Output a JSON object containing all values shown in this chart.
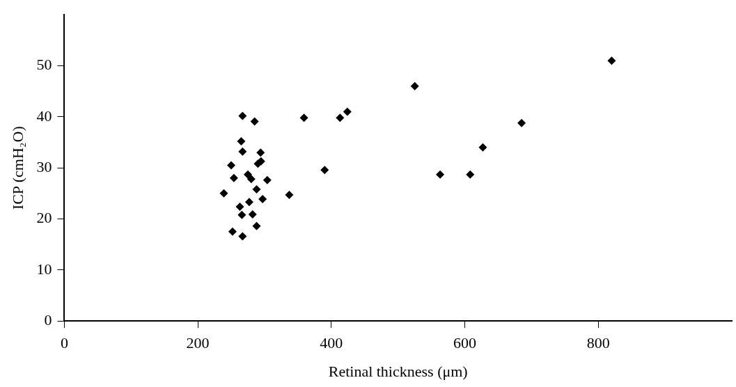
{
  "chart_data": {
    "type": "scatter",
    "xlabel": "Retinal thickness (μm)",
    "ylabel": "ICP (cmH₂O)",
    "x": [
      525,
      685,
      627,
      563,
      608,
      359,
      413,
      424,
      390,
      337,
      267,
      285,
      265,
      267,
      294,
      294.6,
      290,
      250,
      254,
      275,
      280,
      304,
      239,
      288,
      297,
      277,
      263,
      266,
      282,
      288,
      252,
      267,
      820
    ],
    "values": [
      46,
      38.8,
      34,
      28.7,
      28.7,
      39.8,
      39.8,
      41,
      29.6,
      24.7,
      40.2,
      39.1,
      35.2,
      33.2,
      33,
      31.3,
      30.8,
      30.5,
      28,
      28.7,
      27.8,
      27.6,
      25,
      25.8,
      23.9,
      23.3,
      22.4,
      20.8,
      20.9,
      18.6,
      17.5,
      16.6,
      51
    ],
    "color": "#000000",
    "marker": "diamond",
    "xlim": [
      0,
      1000
    ],
    "ylim": [
      0,
      60
    ],
    "xticks": [
      0,
      200,
      400,
      600,
      800
    ],
    "yticks": [
      0,
      10,
      20,
      30,
      40,
      50
    ],
    "grid": false,
    "legend": false
  }
}
